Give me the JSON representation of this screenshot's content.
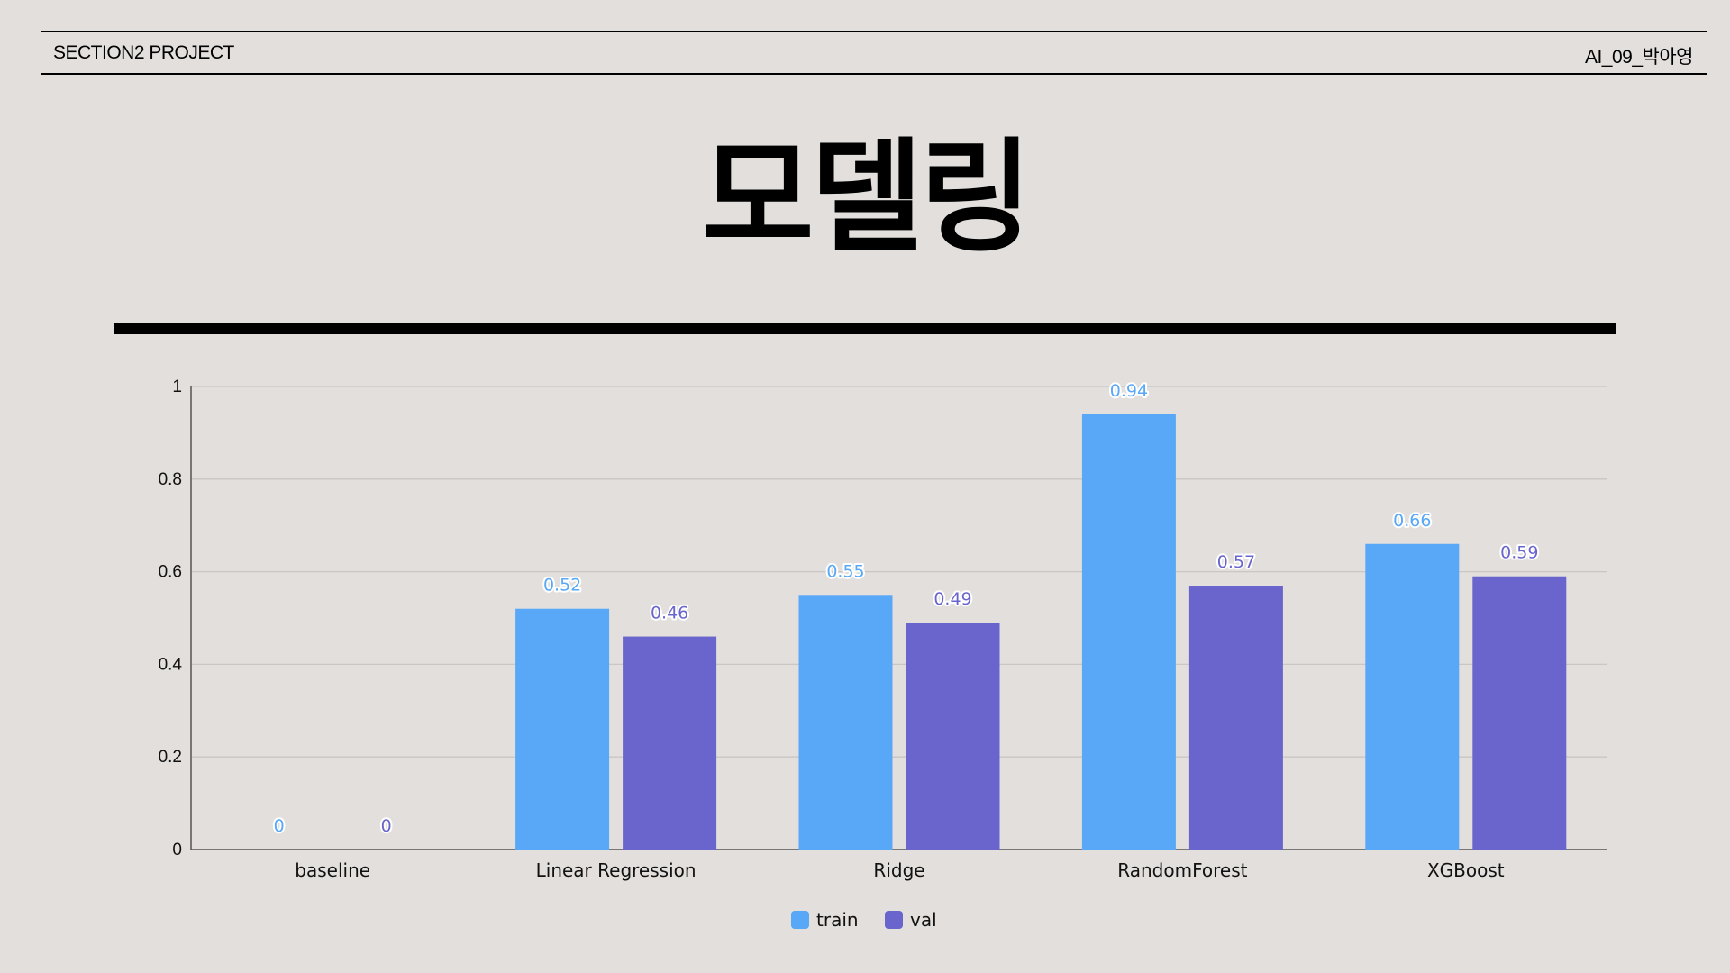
{
  "header": {
    "left": "SECTION2 PROJECT",
    "right": "AI_09_박아영"
  },
  "title": "모델링",
  "chart_data": {
    "type": "bar",
    "categories": [
      "baseline",
      "Linear Regression",
      "Ridge",
      "RandomForest",
      "XGBoost"
    ],
    "series": [
      {
        "name": "train",
        "color": "#58a8f7",
        "values": [
          0,
          0.52,
          0.55,
          0.94,
          0.66
        ]
      },
      {
        "name": "val",
        "color": "#6a65cc",
        "values": [
          0,
          0.46,
          0.49,
          0.57,
          0.59
        ]
      }
    ],
    "ylim": [
      0,
      1
    ],
    "yticks": [
      "0",
      "0.2",
      "0.4",
      "0.6",
      "0.8",
      "1"
    ],
    "grid": true,
    "legend": "bottom-center",
    "data_labels": true
  }
}
